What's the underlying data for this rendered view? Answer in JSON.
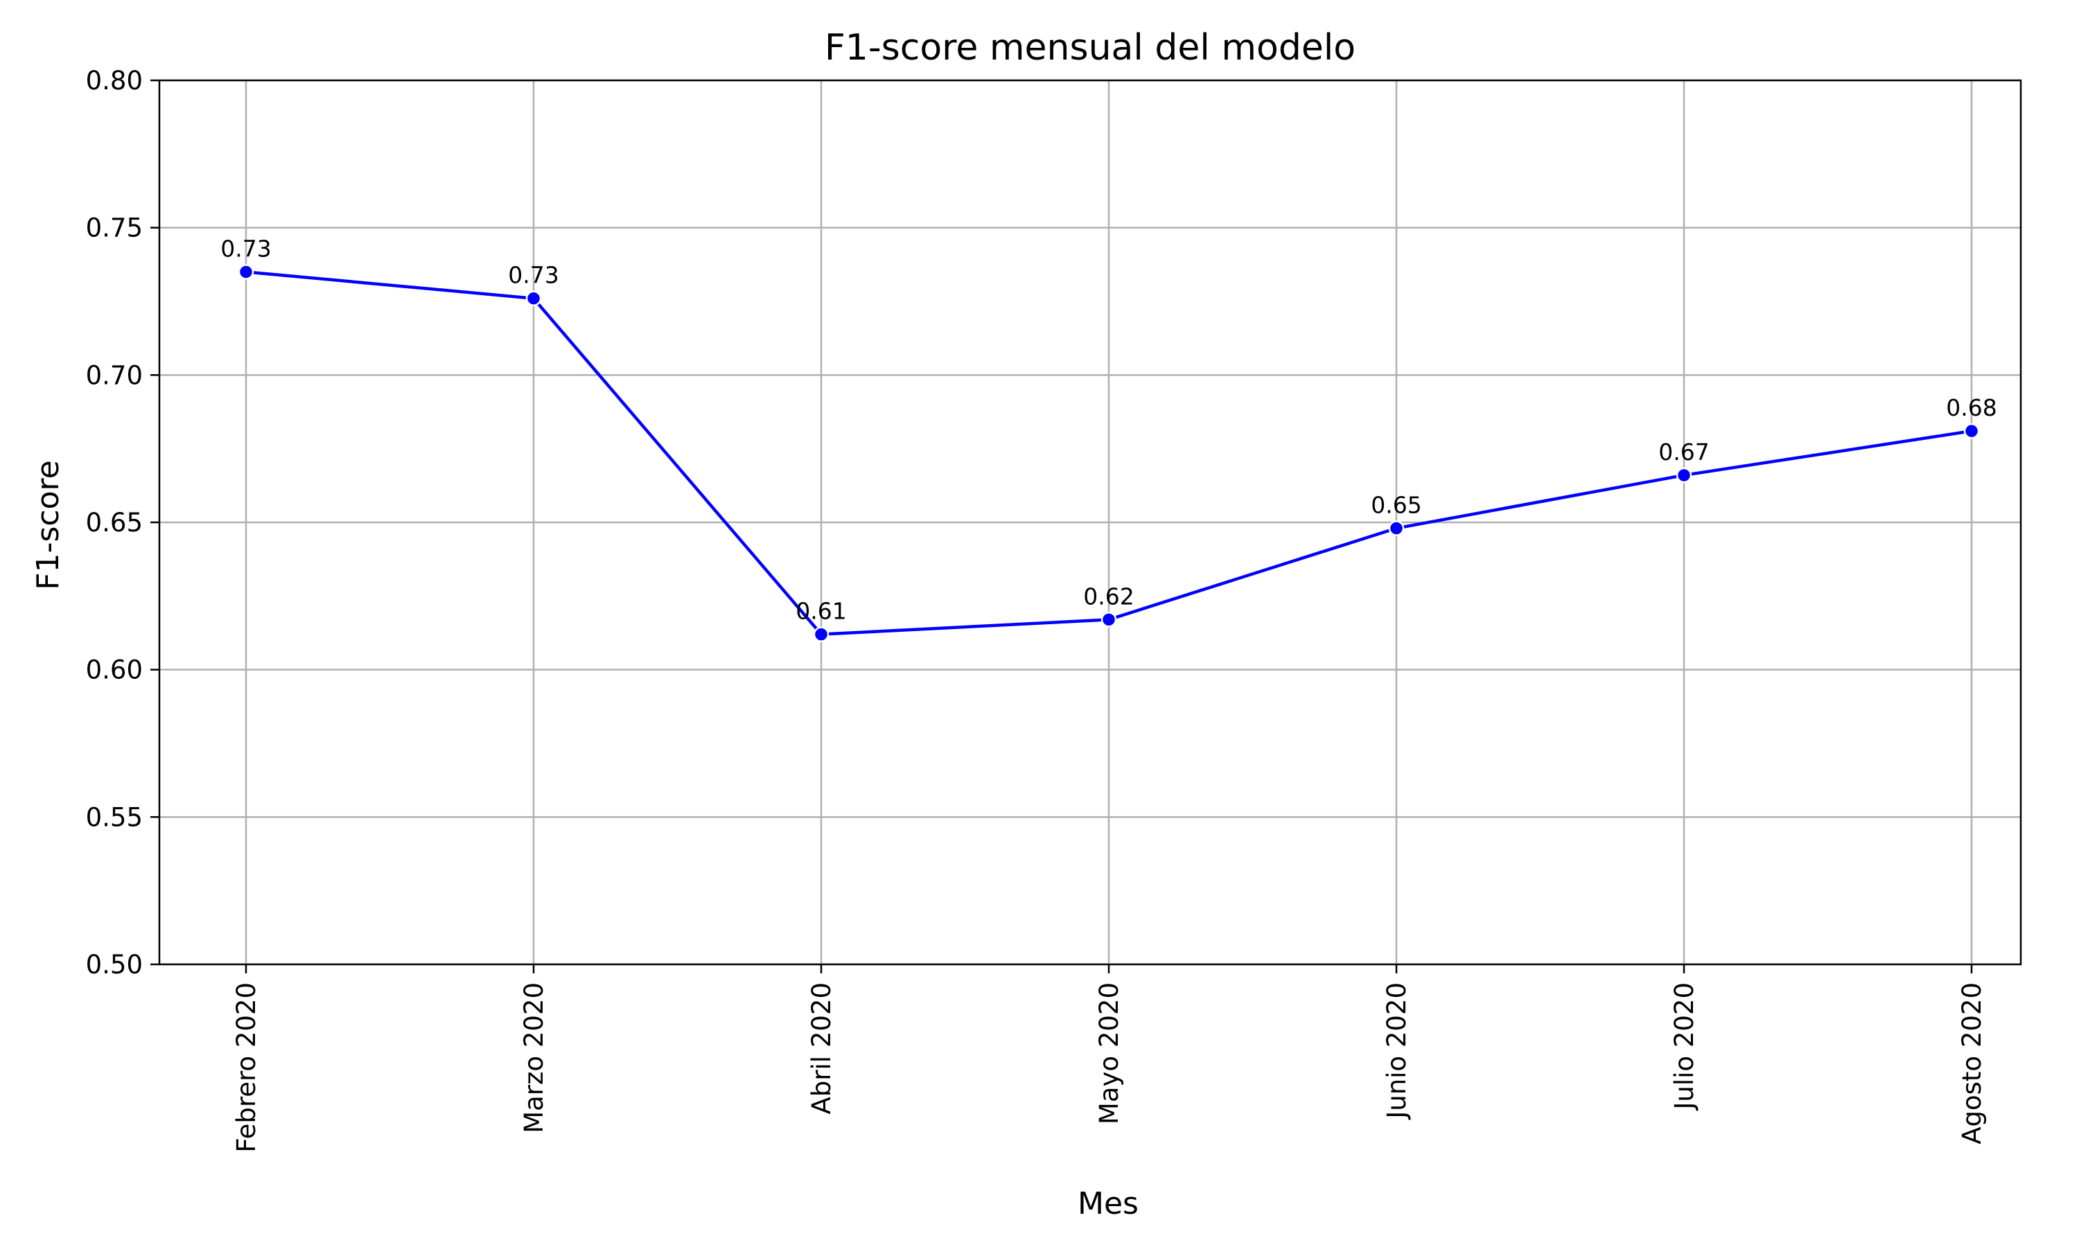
{
  "chart_data": {
    "type": "line",
    "title": "F1-score mensual del modelo",
    "xlabel": "Mes",
    "ylabel": "F1-score",
    "categories": [
      "Febrero 2020",
      "Marzo 2020",
      "Abril 2020",
      "Mayo 2020",
      "Junio 2020",
      "Julio 2020",
      "Agosto 2020"
    ],
    "series": [
      {
        "values": [
          0.735,
          0.726,
          0.612,
          0.617,
          0.648,
          0.666,
          0.681
        ],
        "labels": [
          "0.73",
          "0.73",
          "0.61",
          "0.62",
          "0.65",
          "0.67",
          "0.68"
        ],
        "color": "#0000ff"
      }
    ],
    "ylim": [
      0.5,
      0.8
    ],
    "yticks": [
      "0.50",
      "0.55",
      "0.60",
      "0.65",
      "0.70",
      "0.75",
      "0.80"
    ],
    "grid": true,
    "legend": "none"
  }
}
